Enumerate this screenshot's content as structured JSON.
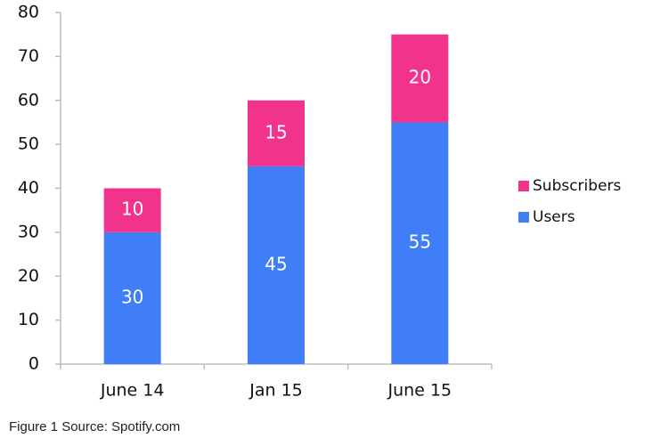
{
  "chart_data": {
    "type": "stacked_bar",
    "categories": [
      "June 14",
      "Jan 15",
      "June 15"
    ],
    "series": [
      {
        "name": "Users",
        "color": "#3f7ef7",
        "values": [
          30,
          45,
          55
        ]
      },
      {
        "name": "Subscribers",
        "color": "#f2338b",
        "values": [
          10,
          15,
          20
        ]
      }
    ],
    "ylim": [
      0,
      80
    ],
    "yticks": [
      0,
      10,
      20,
      30,
      40,
      50,
      60,
      70,
      80
    ],
    "grid": false,
    "legend": "right",
    "caption": "Figure 1 Source: Spotify.com"
  }
}
